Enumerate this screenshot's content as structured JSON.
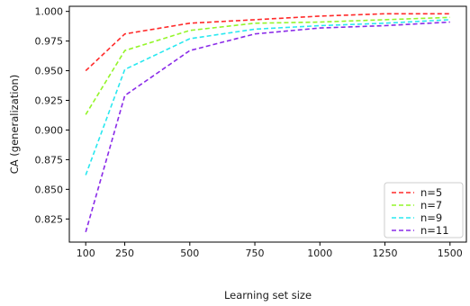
{
  "chart_data": {
    "type": "line",
    "xlabel": "Learning set size",
    "ylabel": "CA (generalization)",
    "x": [
      100,
      250,
      500,
      750,
      1000,
      1250,
      1500
    ],
    "xticks": [
      100,
      250,
      500,
      750,
      1000,
      1250,
      1500
    ],
    "xtick_labels": [
      "100",
      "250",
      "500",
      "750",
      "1000",
      "1250",
      "1500"
    ],
    "xlim": [
      37,
      1563
    ],
    "yticks": [
      0.825,
      0.85,
      0.875,
      0.9,
      0.925,
      0.95,
      0.975,
      1.0
    ],
    "ytick_labels": [
      "0.825",
      "0.850",
      "0.875",
      "0.900",
      "0.925",
      "0.950",
      "0.975",
      "1.000"
    ],
    "ylim": [
      0.8055,
      1.0043
    ],
    "grid": false,
    "legend_position": "lower-right",
    "series": [
      {
        "name": "n=5",
        "color": "#ff2a2a",
        "values": [
          0.95,
          0.981,
          0.99,
          0.993,
          0.996,
          0.998,
          0.998
        ]
      },
      {
        "name": "n=7",
        "color": "#94f52a",
        "values": [
          0.913,
          0.967,
          0.984,
          0.99,
          0.991,
          0.993,
          0.995
        ]
      },
      {
        "name": "n=9",
        "color": "#2ae8f0",
        "values": [
          0.862,
          0.951,
          0.977,
          0.985,
          0.988,
          0.99,
          0.993
        ]
      },
      {
        "name": "n=11",
        "color": "#8a2be8",
        "values": [
          0.814,
          0.929,
          0.967,
          0.981,
          0.986,
          0.988,
          0.991
        ]
      }
    ]
  }
}
